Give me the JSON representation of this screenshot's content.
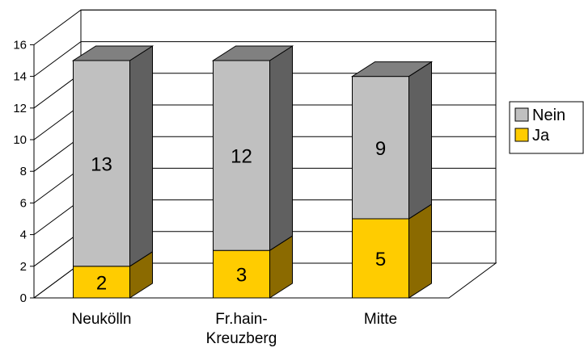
{
  "chart_data": {
    "type": "bar",
    "stacked": true,
    "three_d": true,
    "categories": [
      "Neukölln",
      "Fr.hain-\nKreuzberg",
      "Mitte"
    ],
    "series": [
      {
        "name": "Ja",
        "values": [
          2,
          3,
          5
        ],
        "color": "#ffcc00",
        "side_color": "#8b6a00",
        "top_color": "#c9a200"
      },
      {
        "name": "Nein",
        "values": [
          13,
          12,
          9
        ],
        "color": "#c0c0c0",
        "side_color": "#606060",
        "top_color": "#808080"
      }
    ],
    "legend_order": [
      "Nein",
      "Ja"
    ],
    "legend_position": "right",
    "yticks": [
      0,
      2,
      4,
      6,
      8,
      10,
      12,
      14,
      16
    ],
    "ylim": [
      0,
      16
    ],
    "grid": true,
    "title": "",
    "xlabel": "",
    "ylabel": ""
  }
}
